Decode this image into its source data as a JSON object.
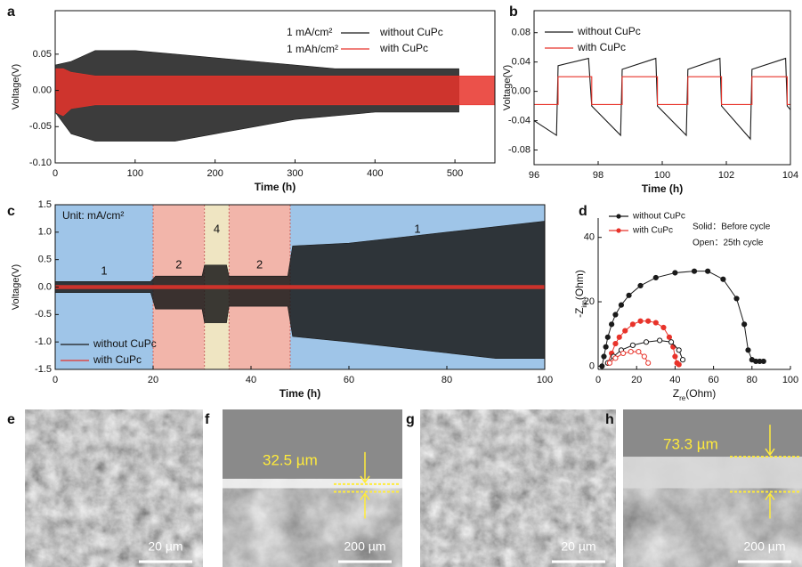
{
  "chart_data": [
    {
      "type": "band",
      "panel": "a",
      "xlabel": "Time (h)",
      "ylabel": "Voltage(V)",
      "annotations": [
        "1 mA/cm²",
        "1 mAh/cm²"
      ],
      "legend": "upper right",
      "xlim": [
        0,
        550
      ],
      "xticks": [
        0,
        100,
        200,
        300,
        400,
        500
      ],
      "ylim": [
        -0.1,
        0.11
      ],
      "yticks": [
        {
          "value": -0.1,
          "label": "-0.10"
        },
        -0.05,
        {
          "value": 0,
          "label": "0.00"
        },
        0.05
      ],
      "series": [
        {
          "name": "without CuPc",
          "color": "#1a1a1a",
          "x": [
            0,
            20,
            50,
            100,
            150,
            200,
            250,
            300,
            350,
            400,
            450,
            505
          ],
          "upper": [
            0.035,
            0.04,
            0.055,
            0.055,
            0.05,
            0.045,
            0.04,
            0.035,
            0.03,
            0.03,
            0.03,
            0.03
          ],
          "lower": [
            -0.03,
            -0.06,
            -0.07,
            -0.07,
            -0.07,
            -0.06,
            -0.05,
            -0.04,
            -0.035,
            -0.03,
            -0.03,
            -0.03
          ]
        },
        {
          "name": "with CuPc",
          "color": "#e8332a",
          "x": [
            0,
            10,
            20,
            50,
            100,
            200,
            300,
            400,
            500,
            550
          ],
          "upper": [
            0.03,
            0.03,
            0.025,
            0.02,
            0.02,
            0.02,
            0.02,
            0.02,
            0.02,
            0.02
          ],
          "lower": [
            -0.03,
            -0.035,
            -0.025,
            -0.02,
            -0.02,
            -0.02,
            -0.02,
            -0.02,
            -0.02,
            -0.02
          ]
        }
      ]
    },
    {
      "type": "line",
      "panel": "b",
      "xlabel": "Time (h)",
      "ylabel": "Voltage(V)",
      "legend": "upper left",
      "xlim": [
        96,
        104
      ],
      "xticks": [
        96,
        98,
        100,
        102,
        104
      ],
      "ylim": [
        -0.1,
        0.11
      ],
      "yticks": [
        -0.08,
        -0.04,
        {
          "value": 0,
          "label": "0.00"
        },
        0.04,
        0.08
      ],
      "series": [
        {
          "name": "without CuPc",
          "color": "#1a1a1a",
          "x": [
            96,
            96.7,
            96.75,
            97.7,
            97.8,
            98.7,
            98.75,
            99.8,
            99.85,
            100.75,
            100.8,
            101.8,
            101.85,
            102.75,
            102.8,
            103.85,
            103.9,
            104
          ],
          "values": [
            -0.04,
            -0.06,
            0.035,
            0.045,
            -0.02,
            -0.06,
            0.03,
            0.045,
            -0.02,
            -0.06,
            0.03,
            0.045,
            -0.02,
            -0.065,
            0.03,
            0.045,
            -0.02,
            -0.025
          ]
        },
        {
          "name": "with CuPc",
          "color": "#e8332a",
          "x": [
            96,
            96.75,
            96.75,
            97.8,
            97.8,
            98.75,
            98.75,
            99.85,
            99.85,
            100.8,
            100.8,
            101.85,
            101.85,
            102.8,
            102.8,
            103.9,
            103.9,
            104
          ],
          "values": [
            -0.018,
            -0.018,
            0.02,
            0.02,
            -0.018,
            -0.018,
            0.02,
            0.02,
            -0.018,
            -0.018,
            0.02,
            0.02,
            -0.018,
            -0.018,
            0.02,
            0.02,
            -0.018,
            -0.018
          ]
        }
      ]
    },
    {
      "type": "band",
      "panel": "c",
      "xlabel": "Time (h)",
      "ylabel": "Voltage(V)",
      "legend": "lower left",
      "annotations": [
        "Unit: mA/cm²"
      ],
      "regions": [
        {
          "start": 0,
          "end": 20,
          "label": "1",
          "color": "#9fc5e8"
        },
        {
          "start": 20,
          "end": 30.5,
          "label": "2",
          "color": "#f2b5aa"
        },
        {
          "start": 30.5,
          "end": 35.5,
          "label": "4",
          "color": "#efe5c2"
        },
        {
          "start": 35.5,
          "end": 48,
          "label": "2",
          "color": "#f2b5aa"
        },
        {
          "start": 48,
          "end": 100,
          "label": "1",
          "color": "#9fc5e8"
        }
      ],
      "xlim": [
        0,
        100
      ],
      "xticks": [
        0,
        20,
        40,
        60,
        80,
        100
      ],
      "ylim": [
        -1.5,
        1.5
      ],
      "yticks": [
        -1.5,
        {
          "value": -1,
          "label": "-1.0"
        },
        -0.5,
        {
          "value": 0,
          "label": "0.0"
        },
        0.5,
        {
          "value": 1,
          "label": "1.0"
        },
        1.5
      ],
      "series": [
        {
          "name": "without CuPc",
          "color": "#1a1a1a",
          "x": [
            0,
            19.5,
            20.5,
            30,
            30.5,
            35,
            35.5,
            47.5,
            48.5,
            60,
            70,
            80,
            90,
            100
          ],
          "upper": [
            0.1,
            0.1,
            0.2,
            0.2,
            0.4,
            0.4,
            0.2,
            0.2,
            0.75,
            0.8,
            0.9,
            1.0,
            1.1,
            1.2
          ],
          "lower": [
            -0.1,
            -0.1,
            -0.4,
            -0.4,
            -0.65,
            -0.65,
            -0.35,
            -0.35,
            -0.9,
            -1.0,
            -1.1,
            -1.2,
            -1.3,
            -1.3
          ]
        },
        {
          "name": "with CuPc",
          "color": "#e8332a",
          "x": [
            0,
            100
          ],
          "upper": [
            0.03,
            0.03
          ],
          "lower": [
            -0.03,
            -0.03
          ]
        }
      ]
    },
    {
      "type": "scatter",
      "panel": "d",
      "xlabel": [
        "Z",
        "re",
        "(Ohm)"
      ],
      "ylabel": [
        "-Z",
        "im",
        "(Ohm)"
      ],
      "legend": "upper left",
      "annotations": [
        "Solid：Before cycle",
        "Open：25th cycle"
      ],
      "xlim": [
        0,
        100
      ],
      "xticks": [
        0,
        20,
        40,
        60,
        80,
        100
      ],
      "ylim": [
        -1,
        46
      ],
      "yticks": [
        0,
        20,
        40
      ],
      "series": [
        {
          "name": "without CuPc",
          "color": "#1a1a1a",
          "marker": "filled",
          "x": [
            2,
            3,
            4,
            5,
            7,
            9,
            12,
            16,
            22,
            30,
            40,
            50,
            57,
            65,
            72,
            76,
            78,
            80,
            82,
            84,
            86
          ],
          "values": [
            0,
            3,
            6,
            9,
            13,
            16,
            19,
            22,
            25,
            27.5,
            29,
            29.5,
            29.5,
            27,
            21,
            13,
            5,
            2,
            1.5,
            1.5,
            1.5
          ]
        },
        {
          "name": "with CuPc",
          "color": "#e8332a",
          "marker": "filled",
          "x": [
            5,
            7,
            9,
            11,
            14,
            18,
            22,
            26,
            30,
            34,
            37,
            39,
            40,
            41,
            42
          ],
          "values": [
            1,
            4,
            7,
            9,
            11,
            13,
            14,
            14,
            13.5,
            12,
            9,
            6,
            3,
            1,
            0.5
          ]
        },
        {
          "name": "without CuPc",
          "color": "#1a1a1a",
          "marker": "open",
          "x": [
            5,
            8,
            12,
            18,
            25,
            32,
            38,
            42,
            44
          ],
          "values": [
            1,
            3,
            5,
            6.5,
            7.5,
            8,
            7.5,
            5,
            2
          ]
        },
        {
          "name": "with CuPc",
          "color": "#e8332a",
          "marker": "open",
          "x": [
            6,
            9,
            13,
            17,
            21,
            24,
            26
          ],
          "values": [
            1,
            2.5,
            4,
            4.5,
            4.5,
            3,
            1
          ]
        }
      ]
    }
  ],
  "images": [
    {
      "label": "e",
      "scale": "20 µm"
    },
    {
      "label": "f",
      "scale": "200 µm",
      "measure": "32.5 µm"
    },
    {
      "label": "g",
      "scale": "20 µm"
    },
    {
      "label": "h",
      "scale": "200 µm",
      "measure": "73.3 µm"
    }
  ]
}
